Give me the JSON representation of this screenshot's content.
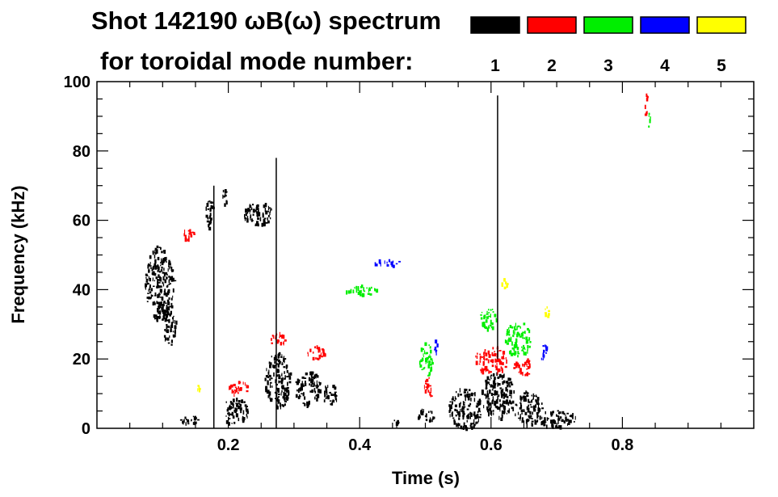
{
  "chart_data": {
    "type": "spectrogram",
    "title_line1": "Shot 142190 ωB(ω) spectrum",
    "title_line2": "for toroidal mode number:",
    "xlabel": "Time (s)",
    "ylabel": "Frequency (kHz)",
    "xlim": [
      0.0,
      1.0
    ],
    "ylim": [
      0,
      100
    ],
    "x_ticks": [
      0.2,
      0.4,
      0.6,
      0.8
    ],
    "x_tick_labels": [
      "0.2",
      "0.4",
      "0.6",
      "0.8"
    ],
    "y_ticks": [
      0,
      20,
      40,
      60,
      80,
      100
    ],
    "y_tick_labels": [
      "0",
      "20",
      "40",
      "60",
      "80",
      "100"
    ],
    "legend": [
      {
        "mode": "1",
        "color": "#000000"
      },
      {
        "mode": "2",
        "color": "#ff0000"
      },
      {
        "mode": "3",
        "color": "#00ee00"
      },
      {
        "mode": "4",
        "color": "#0000ff"
      },
      {
        "mode": "5",
        "color": "#ffff00"
      }
    ],
    "patches": [
      {
        "mode": 1,
        "t": 0.095,
        "f": 42,
        "dt": 0.045,
        "df": 22
      },
      {
        "mode": 1,
        "t": 0.11,
        "f": 30,
        "dt": 0.02,
        "df": 12
      },
      {
        "mode": 1,
        "t": 0.17,
        "f": 63,
        "dt": 0.012,
        "df": 10
      },
      {
        "mode": 1,
        "t": 0.195,
        "f": 67,
        "dt": 0.01,
        "df": 5
      },
      {
        "mode": 1,
        "t": 0.21,
        "f": 5,
        "dt": 0.04,
        "df": 8
      },
      {
        "mode": 1,
        "t": 0.14,
        "f": 3,
        "dt": 0.03,
        "df": 3
      },
      {
        "mode": 1,
        "t": 0.245,
        "f": 62,
        "dt": 0.045,
        "df": 7
      },
      {
        "mode": 1,
        "t": 0.275,
        "f": 14,
        "dt": 0.04,
        "df": 16
      },
      {
        "mode": 1,
        "t": 0.32,
        "f": 12,
        "dt": 0.04,
        "df": 10
      },
      {
        "mode": 1,
        "t": 0.355,
        "f": 10,
        "dt": 0.025,
        "df": 6
      },
      {
        "mode": 1,
        "t": 0.56,
        "f": 6,
        "dt": 0.05,
        "df": 12
      },
      {
        "mode": 1,
        "t": 0.61,
        "f": 10,
        "dt": 0.05,
        "df": 14
      },
      {
        "mode": 1,
        "t": 0.655,
        "f": 6,
        "dt": 0.045,
        "df": 10
      },
      {
        "mode": 1,
        "t": 0.7,
        "f": 3,
        "dt": 0.06,
        "df": 5
      },
      {
        "mode": 1,
        "t": 0.5,
        "f": 4,
        "dt": 0.025,
        "df": 4
      },
      {
        "mode": 1,
        "t": 0.455,
        "f": 2,
        "dt": 0.008,
        "df": 2
      },
      {
        "mode": 2,
        "t": 0.14,
        "f": 56,
        "dt": 0.02,
        "df": 4
      },
      {
        "mode": 2,
        "t": 0.215,
        "f": 12,
        "dt": 0.03,
        "df": 4
      },
      {
        "mode": 2,
        "t": 0.275,
        "f": 26,
        "dt": 0.025,
        "df": 4
      },
      {
        "mode": 2,
        "t": 0.335,
        "f": 22,
        "dt": 0.03,
        "df": 4
      },
      {
        "mode": 2,
        "t": 0.505,
        "f": 12,
        "dt": 0.015,
        "df": 6
      },
      {
        "mode": 2,
        "t": 0.6,
        "f": 20,
        "dt": 0.05,
        "df": 8
      },
      {
        "mode": 2,
        "t": 0.648,
        "f": 18,
        "dt": 0.03,
        "df": 5
      },
      {
        "mode": 2,
        "t": 0.835,
        "f": 94,
        "dt": 0.004,
        "df": 8
      },
      {
        "mode": 3,
        "t": 0.4,
        "f": 40,
        "dt": 0.05,
        "df": 3
      },
      {
        "mode": 3,
        "t": 0.5,
        "f": 20,
        "dt": 0.02,
        "df": 10
      },
      {
        "mode": 3,
        "t": 0.595,
        "f": 32,
        "dt": 0.025,
        "df": 6
      },
      {
        "mode": 3,
        "t": 0.64,
        "f": 26,
        "dt": 0.04,
        "df": 10
      },
      {
        "mode": 3,
        "t": 0.84,
        "f": 90,
        "dt": 0.005,
        "df": 6
      },
      {
        "mode": 4,
        "t": 0.515,
        "f": 24,
        "dt": 0.01,
        "df": 4
      },
      {
        "mode": 4,
        "t": 0.68,
        "f": 22,
        "dt": 0.01,
        "df": 6
      },
      {
        "mode": 4,
        "t": 0.44,
        "f": 48,
        "dt": 0.04,
        "df": 2
      },
      {
        "mode": 5,
        "t": 0.62,
        "f": 42,
        "dt": 0.01,
        "df": 4
      },
      {
        "mode": 5,
        "t": 0.685,
        "f": 34,
        "dt": 0.01,
        "df": 4
      },
      {
        "mode": 5,
        "t": 0.155,
        "f": 12,
        "dt": 0.004,
        "df": 2
      }
    ],
    "lines": [
      {
        "mode": 1,
        "t": 0.273,
        "f0": 0,
        "f1": 78
      },
      {
        "mode": 1,
        "t": 0.178,
        "f0": 0,
        "f1": 70
      },
      {
        "mode": 1,
        "t": 0.61,
        "f0": 20,
        "f1": 96
      }
    ]
  }
}
